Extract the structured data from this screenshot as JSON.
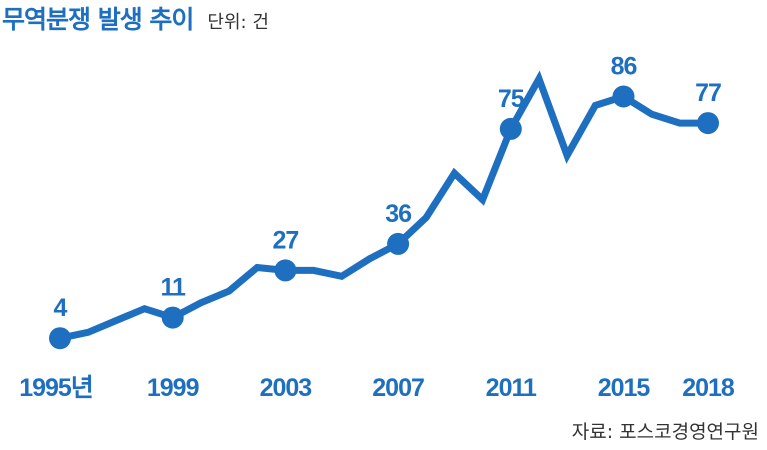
{
  "header": {
    "title": "무역분쟁 발생 추이",
    "unit": "단위: 건"
  },
  "footer": {
    "source": "자료: 포스코경영연구원"
  },
  "colors": {
    "line": "#1e6fc0",
    "text": "#1e6fc0"
  },
  "chart_data": {
    "type": "line",
    "title": "무역분쟁 발생 추이",
    "unit": "건",
    "x": [
      1995,
      1996,
      1997,
      1998,
      1999,
      2000,
      2001,
      2002,
      2003,
      2004,
      2005,
      2006,
      2007,
      2008,
      2009,
      2010,
      2011,
      2012,
      2013,
      2014,
      2015,
      2016,
      2017,
      2018
    ],
    "series": [
      {
        "values": [
          4,
          6,
          10,
          14,
          11,
          16,
          20,
          28,
          27,
          27,
          25,
          31,
          36,
          45,
          60,
          51,
          75,
          92,
          66,
          83,
          86,
          80,
          77,
          77
        ]
      }
    ],
    "xticks": [
      {
        "x": 1995,
        "label": "1995년"
      },
      {
        "x": 1999,
        "label": "1999"
      },
      {
        "x": 2003,
        "label": "2003"
      },
      {
        "x": 2007,
        "label": "2007"
      },
      {
        "x": 2011,
        "label": "2011"
      },
      {
        "x": 2015,
        "label": "2015"
      },
      {
        "x": 2018,
        "label": "2018"
      }
    ],
    "labeled_points": [
      {
        "x": 1995,
        "label": "4"
      },
      {
        "x": 1999,
        "label": "11"
      },
      {
        "x": 2003,
        "label": "27"
      },
      {
        "x": 2007,
        "label": "36"
      },
      {
        "x": 2011,
        "label": "75"
      },
      {
        "x": 2015,
        "label": "86"
      },
      {
        "x": 2018,
        "label": "77"
      }
    ],
    "ylim": [
      0,
      95
    ],
    "grid": false
  }
}
